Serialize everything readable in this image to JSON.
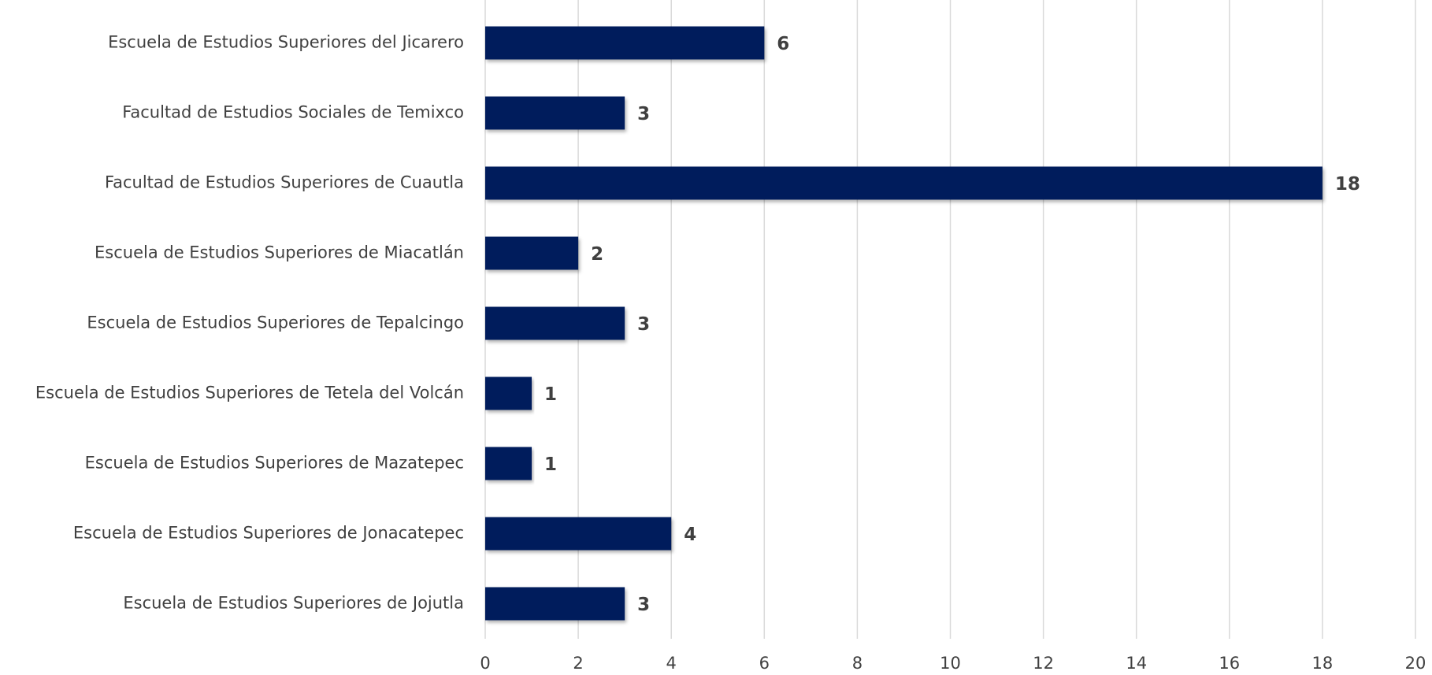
{
  "chart_data": {
    "type": "bar",
    "orientation": "horizontal",
    "categories": [
      "Escuela de Estudios Superiores del Jicarero",
      "Facultad de Estudios Sociales de Temixco",
      "Facultad de Estudios Superiores de Cuautla",
      "Escuela de Estudios Superiores de Miacatlán",
      "Escuela de Estudios Superiores de Tepalcingo",
      "Escuela de Estudios Superiores de Tetela del Volcán",
      "Escuela de Estudios Superiores de Mazatepec",
      "Escuela de Estudios Superiores de Jonacatepec",
      "Escuela de Estudios Superiores de Jojutla"
    ],
    "values": [
      6,
      3,
      18,
      2,
      3,
      1,
      1,
      4,
      3
    ],
    "color": "#001f5b",
    "xlim": [
      0,
      20
    ],
    "xticks": [
      0,
      2,
      4,
      6,
      8,
      10,
      12,
      14,
      16,
      18,
      20
    ],
    "grid": true
  }
}
